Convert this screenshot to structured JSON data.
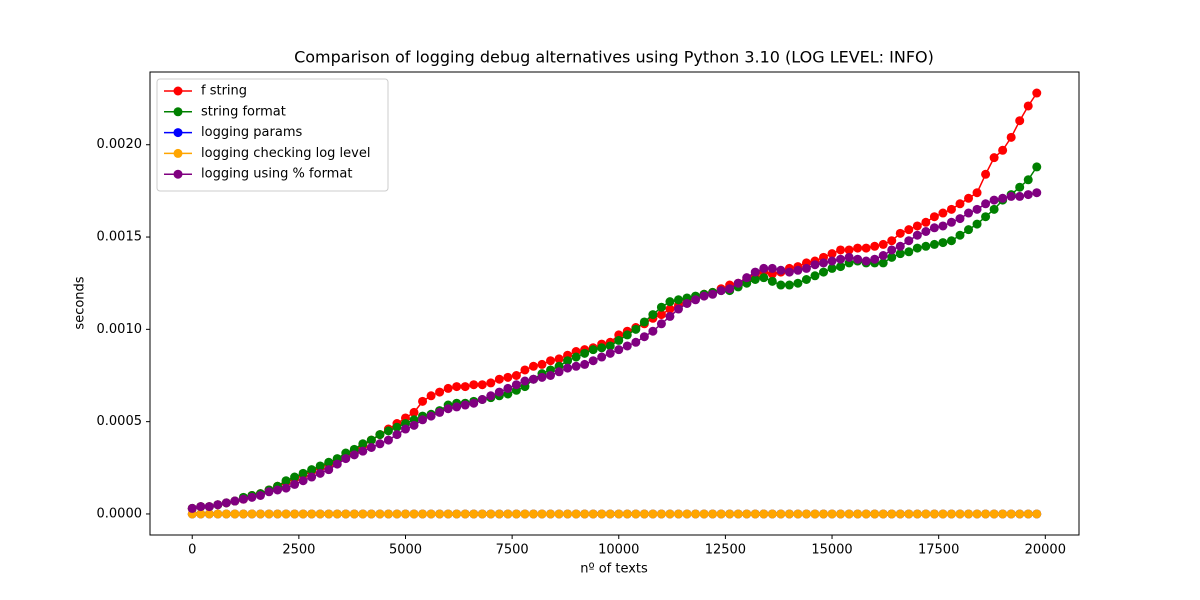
{
  "chart_data": {
    "type": "line",
    "title": "Comparison of logging debug alternatives using Python 3.10 (LOG LEVEL: INFO)",
    "x_label": "nº of texts",
    "y_label": "seconds",
    "x": [
      0,
      200,
      400,
      600,
      800,
      1000,
      1200,
      1400,
      1600,
      1800,
      2000,
      2200,
      2400,
      2600,
      2800,
      3000,
      3200,
      3400,
      3600,
      3800,
      4000,
      4200,
      4400,
      4600,
      4800,
      5000,
      5200,
      5400,
      5600,
      5800,
      6000,
      6200,
      6400,
      6600,
      6800,
      7000,
      7200,
      7400,
      7600,
      7800,
      8000,
      8200,
      8400,
      8600,
      8800,
      9000,
      9200,
      9400,
      9600,
      9800,
      10000,
      10200,
      10400,
      10600,
      10800,
      11000,
      11200,
      11400,
      11600,
      11800,
      12000,
      12200,
      12400,
      12600,
      12800,
      13000,
      13200,
      13400,
      13600,
      13800,
      14000,
      14200,
      14400,
      14600,
      14800,
      15000,
      15200,
      15400,
      15600,
      15800,
      16000,
      16200,
      16400,
      16600,
      16800,
      17000,
      17200,
      17400,
      17600,
      17800,
      18000,
      18200,
      18400,
      18600,
      18800,
      19000,
      19200,
      19400,
      19600,
      19800
    ],
    "series": [
      {
        "name": "f string",
        "color": "red",
        "values": [
          3e-05,
          4e-05,
          4e-05,
          5e-05,
          6e-05,
          7e-05,
          8e-05,
          0.0001,
          0.00011,
          0.00013,
          0.00015,
          0.00017,
          0.00019,
          0.00021,
          0.00023,
          0.00025,
          0.00027,
          0.00029,
          0.00031,
          0.00034,
          0.00037,
          0.0004,
          0.00043,
          0.00046,
          0.00049,
          0.00052,
          0.00055,
          0.00061,
          0.00064,
          0.00066,
          0.00068,
          0.00069,
          0.00069,
          0.0007,
          0.0007,
          0.00071,
          0.00073,
          0.00074,
          0.00075,
          0.00078,
          0.0008,
          0.00081,
          0.00083,
          0.00084,
          0.00086,
          0.00088,
          0.00089,
          0.0009,
          0.00092,
          0.00093,
          0.00097,
          0.00099,
          0.00101,
          0.00103,
          0.00106,
          0.00108,
          0.00111,
          0.00113,
          0.00116,
          0.00117,
          0.00119,
          0.0012,
          0.00122,
          0.00124,
          0.00125,
          0.00127,
          0.00129,
          0.00131,
          0.0013,
          0.00131,
          0.00133,
          0.00134,
          0.00136,
          0.00137,
          0.00139,
          0.00141,
          0.00143,
          0.00143,
          0.00144,
          0.00144,
          0.00145,
          0.00146,
          0.00148,
          0.00152,
          0.00154,
          0.00156,
          0.00158,
          0.00161,
          0.00163,
          0.00165,
          0.00168,
          0.00171,
          0.00174,
          0.00184,
          0.00193,
          0.00197,
          0.00204,
          0.00213,
          0.00221,
          0.00228
        ]
      },
      {
        "name": "string format",
        "color": "green",
        "values": [
          3e-05,
          4e-05,
          4e-05,
          5e-05,
          6e-05,
          7e-05,
          9e-05,
          0.0001,
          0.00011,
          0.00013,
          0.00015,
          0.00018,
          0.0002,
          0.00022,
          0.00024,
          0.00026,
          0.00028,
          0.0003,
          0.00033,
          0.00035,
          0.00038,
          0.0004,
          0.00043,
          0.00045,
          0.00047,
          0.00049,
          0.00051,
          0.00053,
          0.00054,
          0.00056,
          0.00059,
          0.0006,
          0.0006,
          0.00061,
          0.00062,
          0.00063,
          0.00064,
          0.00065,
          0.00067,
          0.00069,
          0.00073,
          0.00076,
          0.00078,
          0.0008,
          0.00083,
          0.00085,
          0.00087,
          0.00089,
          0.0009,
          0.00091,
          0.00094,
          0.00097,
          0.001,
          0.00104,
          0.00108,
          0.00112,
          0.00115,
          0.00116,
          0.00117,
          0.00118,
          0.00119,
          0.0012,
          0.00121,
          0.00121,
          0.00123,
          0.00125,
          0.00127,
          0.00128,
          0.00126,
          0.00124,
          0.00124,
          0.00125,
          0.00127,
          0.00129,
          0.00131,
          0.00133,
          0.00134,
          0.00136,
          0.00137,
          0.00136,
          0.00136,
          0.00136,
          0.00139,
          0.00141,
          0.00142,
          0.00144,
          0.00145,
          0.00146,
          0.00147,
          0.00148,
          0.00151,
          0.00154,
          0.00157,
          0.00161,
          0.00165,
          0.0017,
          0.00173,
          0.00177,
          0.00181,
          0.00188
        ]
      },
      {
        "name": "logging params",
        "color": "blue",
        "values": [
          0,
          0,
          0,
          0,
          0,
          0,
          0,
          0,
          0,
          0,
          0,
          0,
          0,
          0,
          0,
          0,
          0,
          0,
          0,
          0,
          0,
          0,
          0,
          0,
          0,
          0,
          0,
          0,
          0,
          0,
          0,
          0,
          0,
          0,
          0,
          0,
          0,
          0,
          0,
          0,
          0,
          0,
          0,
          0,
          0,
          0,
          0,
          0,
          0,
          0,
          0,
          0,
          0,
          0,
          0,
          0,
          0,
          0,
          0,
          0,
          0,
          0,
          0,
          0,
          0,
          0,
          0,
          0,
          0,
          0,
          0,
          0,
          0,
          0,
          0,
          0,
          0,
          0,
          0,
          0,
          0,
          0,
          0,
          0,
          0,
          0,
          0,
          0,
          0,
          0,
          0,
          0,
          0,
          0,
          0,
          0,
          0,
          0,
          0,
          0
        ]
      },
      {
        "name": "logging checking log level",
        "color": "orange",
        "values": [
          0,
          0,
          0,
          0,
          0,
          0,
          0,
          0,
          0,
          0,
          0,
          0,
          0,
          0,
          0,
          0,
          0,
          0,
          0,
          0,
          0,
          0,
          0,
          0,
          0,
          0,
          0,
          0,
          0,
          0,
          0,
          0,
          0,
          0,
          0,
          0,
          0,
          0,
          0,
          0,
          0,
          0,
          0,
          0,
          0,
          0,
          0,
          0,
          0,
          0,
          0,
          0,
          0,
          0,
          0,
          0,
          0,
          0,
          0,
          0,
          0,
          0,
          0,
          0,
          0,
          0,
          0,
          0,
          0,
          0,
          0,
          0,
          0,
          0,
          0,
          0,
          0,
          0,
          0,
          0,
          0,
          0,
          0,
          0,
          0,
          0,
          0,
          0,
          0,
          0,
          0,
          0,
          0,
          0,
          0,
          0,
          0,
          0,
          0,
          0
        ]
      },
      {
        "name": "logging using % format",
        "color": "purple",
        "values": [
          3e-05,
          4e-05,
          4e-05,
          5e-05,
          6e-05,
          7e-05,
          8e-05,
          9e-05,
          0.0001,
          0.00012,
          0.00013,
          0.00014,
          0.00016,
          0.00018,
          0.0002,
          0.00022,
          0.00024,
          0.00027,
          0.0003,
          0.00032,
          0.00034,
          0.00036,
          0.00038,
          0.0004,
          0.00043,
          0.00046,
          0.00048,
          0.00051,
          0.00053,
          0.00055,
          0.00057,
          0.00058,
          0.00059,
          0.0006,
          0.00062,
          0.00064,
          0.00066,
          0.00068,
          0.0007,
          0.00072,
          0.00073,
          0.00074,
          0.00075,
          0.00077,
          0.00079,
          0.0008,
          0.00081,
          0.00083,
          0.00085,
          0.00087,
          0.00089,
          0.00091,
          0.00093,
          0.00096,
          0.00099,
          0.00103,
          0.00107,
          0.00111,
          0.00114,
          0.00116,
          0.00118,
          0.00119,
          0.00121,
          0.00122,
          0.00125,
          0.00128,
          0.00131,
          0.00133,
          0.00133,
          0.00132,
          0.00131,
          0.00132,
          0.00133,
          0.00135,
          0.00136,
          0.00137,
          0.00138,
          0.00139,
          0.00138,
          0.00137,
          0.00138,
          0.0014,
          0.00143,
          0.00145,
          0.00148,
          0.00151,
          0.00153,
          0.00155,
          0.00156,
          0.00158,
          0.0016,
          0.00163,
          0.00165,
          0.00168,
          0.0017,
          0.00171,
          0.00172,
          0.00172,
          0.00173,
          0.00174
        ]
      }
    ],
    "xlim": [
      -990,
      20790
    ],
    "ylim": [
      -0.000114,
      0.002394
    ],
    "xticks": [
      0,
      2500,
      5000,
      7500,
      10000,
      12500,
      15000,
      17500,
      20000
    ],
    "yticks": [
      {
        "value": 0,
        "label": "0.0000"
      },
      {
        "value": 0.0005,
        "label": "0.0005"
      },
      {
        "value": 0.001,
        "label": "0.0010"
      },
      {
        "value": 0.0015,
        "label": "0.0015"
      },
      {
        "value": 0.002,
        "label": "0.0020"
      }
    ],
    "grid": false,
    "legend": "upper left"
  }
}
